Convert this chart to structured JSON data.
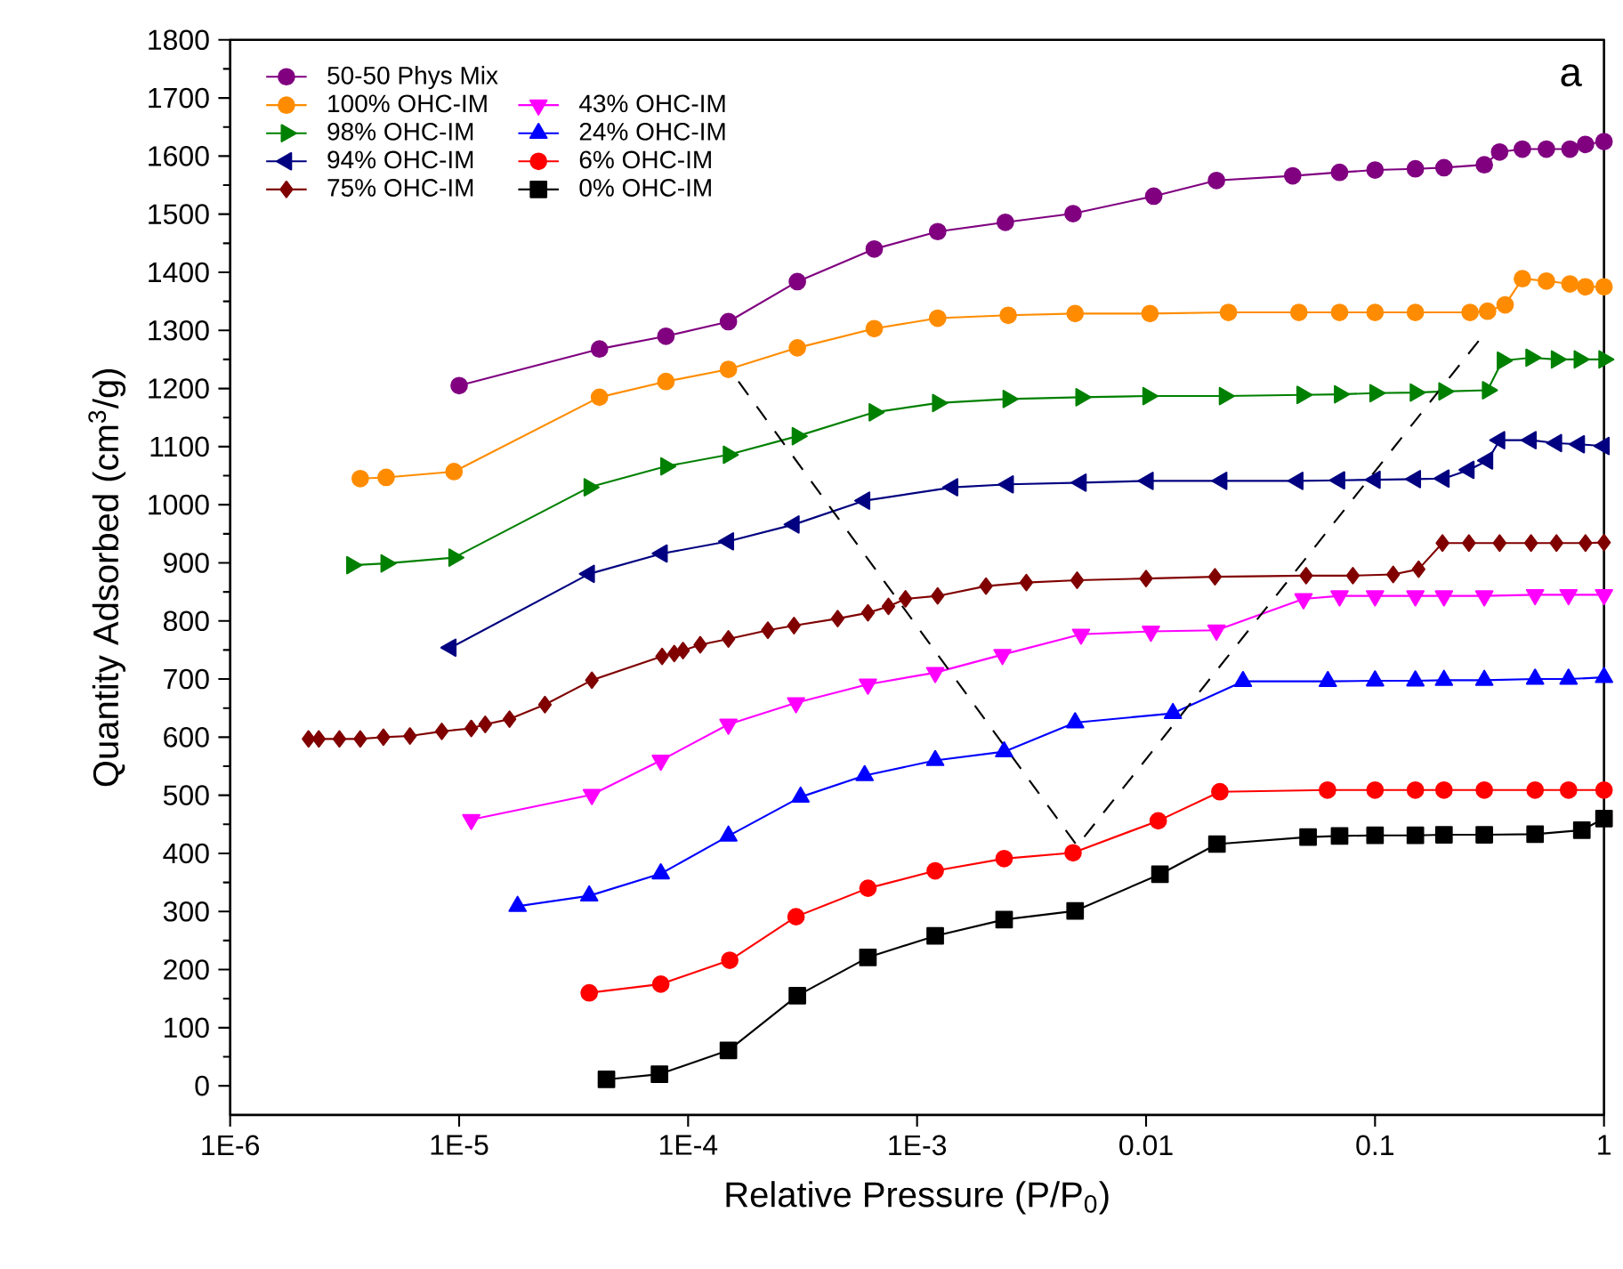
{
  "chart_data": {
    "type": "line",
    "xlabel": "Relative Pressure (P/P$_{0}$)",
    "ylabel": "Quantity Adsorbed (cm$^{3}$/g)",
    "annotations": [
      "a"
    ],
    "log": "x",
    "xlim": [
      1e-06,
      1
    ],
    "ylim": [
      -50,
      1800
    ],
    "xticks": [
      {
        "value": 1e-06,
        "label": "1E-6"
      },
      {
        "value": 1e-05,
        "label": "1E-5"
      },
      {
        "value": 0.0001,
        "label": "1E-4"
      },
      {
        "value": 0.001,
        "label": "1E-3"
      },
      {
        "value": 0.01,
        "label": "0.01"
      },
      {
        "value": 0.1,
        "label": "0.1"
      },
      {
        "value": 1,
        "label": "1"
      }
    ],
    "yticks": [
      0,
      100,
      200,
      300,
      400,
      500,
      600,
      700,
      800,
      900,
      1000,
      1100,
      1200,
      1300,
      1400,
      1500,
      1600,
      1700,
      1800
    ],
    "grid": false,
    "legend": "top left",
    "series": [
      {
        "name": "50-50 Phys Mix",
        "color": "#800080",
        "marker": "circle",
        "x": [
          1e-05,
          4.1e-05,
          8e-05,
          0.00015,
          0.0003,
          0.00065,
          0.00123,
          0.00243,
          0.0048,
          0.0108,
          0.0203,
          0.0437,
          0.07,
          0.1,
          0.15,
          0.2,
          0.3,
          0.35,
          0.44,
          0.56,
          0.71,
          0.83,
          1.0
        ],
        "values": [
          1205,
          1268,
          1290,
          1315,
          1384,
          1440,
          1470,
          1486,
          1501,
          1531,
          1558,
          1566,
          1572,
          1576,
          1578,
          1580,
          1585,
          1607,
          1612,
          1612,
          1612,
          1620,
          1625
        ]
      },
      {
        "name": "100% OHC-IM",
        "color": "#ff8c00",
        "marker": "circle",
        "x": [
          3.7e-06,
          4.8e-06,
          9.5e-06,
          4.1e-05,
          8e-05,
          0.00015,
          0.0003,
          0.00065,
          0.00123,
          0.0025,
          0.0049,
          0.0104,
          0.0229,
          0.0465,
          0.07,
          0.1,
          0.15,
          0.26,
          0.31,
          0.37,
          0.44,
          0.56,
          0.71,
          0.83,
          1.0
        ],
        "values": [
          1045,
          1047,
          1057,
          1185,
          1212,
          1233,
          1270,
          1303,
          1321,
          1326,
          1329,
          1329,
          1331,
          1331,
          1331,
          1331,
          1331,
          1331,
          1333,
          1344,
          1389,
          1385,
          1380,
          1375,
          1375
        ]
      },
      {
        "name": "98% OHC-IM",
        "color": "#008000",
        "marker": "triangle right",
        "x": [
          3.4e-06,
          4.8e-06,
          9.5e-06,
          3.7e-05,
          8e-05,
          0.00015,
          0.0003,
          0.00065,
          0.00123,
          0.0025,
          0.0052,
          0.0102,
          0.022,
          0.048,
          0.07,
          0.1,
          0.15,
          0.2,
          0.31,
          0.36,
          0.48,
          0.62,
          0.78,
          1.0
        ],
        "values": [
          896,
          899,
          909,
          1030,
          1066,
          1086,
          1118,
          1159,
          1175,
          1182,
          1185,
          1187,
          1187,
          1189,
          1190,
          1192,
          1193,
          1195,
          1197,
          1248,
          1253,
          1250,
          1250,
          1250
        ]
      },
      {
        "name": "94% OHC-IM",
        "color": "#000080",
        "marker": "triangle left",
        "x": [
          9.2e-06,
          3.7e-05,
          7.7e-05,
          0.00015,
          0.00029,
          0.00059,
          0.00143,
          0.0025,
          0.0052,
          0.0102,
          0.0214,
          0.046,
          0.07,
          0.1,
          0.15,
          0.2,
          0.257,
          0.31,
          0.35,
          0.48,
          0.62,
          0.78,
          1.0
        ],
        "values": [
          754,
          881,
          916,
          937,
          966,
          1007,
          1030,
          1035,
          1038,
          1041,
          1041,
          1041,
          1042,
          1043,
          1044,
          1045,
          1060,
          1076,
          1111,
          1111,
          1106,
          1104,
          1101
        ]
      },
      {
        "name": "75% OHC-IM",
        "color": "#800000",
        "marker": "diamond",
        "x": [
          2.2e-06,
          2.44e-06,
          3e-06,
          3.7e-06,
          4.67e-06,
          6.1e-06,
          8.4e-06,
          1.13e-05,
          1.3e-05,
          1.66e-05,
          2.37e-05,
          3.8e-05,
          7.7e-05,
          8.7e-05,
          9.5e-05,
          0.000113,
          0.00015,
          0.000223,
          0.00029,
          0.00045,
          0.00061,
          0.00075,
          0.00089,
          0.00123,
          0.002,
          0.003,
          0.005,
          0.01,
          0.02,
          0.05,
          0.08,
          0.12,
          0.155,
          0.197,
          0.257,
          0.35,
          0.48,
          0.62,
          0.83,
          1.0
        ],
        "values": [
          597,
          597,
          597,
          597,
          600,
          602,
          610,
          615,
          622,
          631,
          656,
          698,
          739,
          744,
          749,
          759,
          769,
          784,
          792,
          804,
          814,
          825,
          838,
          843,
          860,
          866,
          870,
          873,
          876,
          878,
          878,
          880,
          889,
          934,
          934,
          934,
          934,
          934,
          934,
          935
        ]
      },
      {
        "name": "43% OHC-IM",
        "color": "#ff00ff",
        "marker": "triangle down",
        "x": [
          1.13e-05,
          3.8e-05,
          7.6e-05,
          0.00015,
          0.000296,
          0.00061,
          0.0012,
          0.00236,
          0.0052,
          0.0105,
          0.0203,
          0.0487,
          0.07,
          0.1,
          0.15,
          0.2,
          0.3,
          0.5,
          0.7,
          1.0
        ],
        "values": [
          458,
          501,
          560,
          622,
          659,
          691,
          711,
          742,
          777,
          782,
          784,
          838,
          843,
          843,
          843,
          843,
          843,
          845,
          845,
          845
        ]
      },
      {
        "name": "24% OHC-IM",
        "color": "#0000ff",
        "marker": "triangle",
        "x": [
          1.8e-05,
          3.7e-05,
          7.6e-05,
          0.00015,
          0.00031,
          0.00059,
          0.0012,
          0.0024,
          0.0049,
          0.0131,
          0.0265,
          0.0622,
          0.1,
          0.15,
          0.2,
          0.3,
          0.5,
          0.7,
          1.0
        ],
        "values": [
          309,
          327,
          365,
          430,
          497,
          534,
          560,
          575,
          625,
          641,
          696,
          696,
          697,
          697,
          698,
          698,
          700,
          700,
          703
        ]
      },
      {
        "name": "6% OHC-IM",
        "color": "#ff0000",
        "marker": "circle",
        "x": [
          3.7e-05,
          7.6e-05,
          0.000152,
          0.000296,
          0.00061,
          0.0012,
          0.0024,
          0.0048,
          0.0113,
          0.021,
          0.062,
          0.1,
          0.15,
          0.2,
          0.3,
          0.5,
          0.7,
          1.0
        ],
        "values": [
          160,
          175,
          216,
          291,
          340,
          370,
          391,
          401,
          456,
          506,
          509,
          509,
          509,
          509,
          509,
          509,
          509,
          509
        ]
      },
      {
        "name": "0% OHC-IM",
        "color": "#000000",
        "marker": "square",
        "x": [
          4.4e-05,
          7.5e-05,
          0.00015,
          0.0003,
          0.00061,
          0.0012,
          0.0024,
          0.0049,
          0.0115,
          0.0204,
          0.051,
          0.07,
          0.1,
          0.15,
          0.2,
          0.3,
          0.5,
          0.8,
          1.0
        ],
        "values": [
          11,
          20,
          61,
          155,
          221,
          258,
          286,
          301,
          364,
          416,
          428,
          430,
          431,
          431,
          432,
          432,
          433,
          440,
          460
        ]
      },
      {
        "color": "#000000",
        "marker": "none",
        "line_style": "dashed",
        "x": [
          0.000166,
          0.005,
          0.285
        ],
        "values": [
          1212,
          413,
          1283
        ]
      }
    ]
  }
}
